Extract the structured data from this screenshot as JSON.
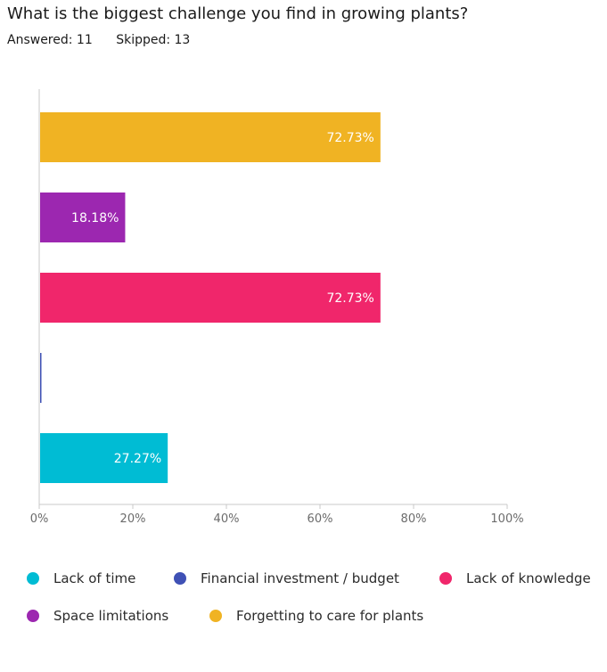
{
  "question": "What is the biggest challenge you find in growing plants?",
  "stats": {
    "answered": "Answered: 11",
    "skipped": "Skipped: 13"
  },
  "chart_data": {
    "type": "bar",
    "orientation": "horizontal",
    "categories": [
      "Forgetting to care for plants",
      "Space limitations",
      "Lack of knowledge",
      "Financial investment / budget",
      "Lack of time"
    ],
    "values": [
      72.73,
      18.18,
      72.73,
      0,
      27.27
    ],
    "data_labels": [
      "72.73%",
      "18.18%",
      "72.73%",
      "",
      "27.27%"
    ],
    "colors": [
      "#f0b323",
      "#9c27b0",
      "#f0266b",
      "#3f51b5",
      "#00bcd4"
    ],
    "xlim": [
      0,
      100
    ],
    "xticks": [
      "0%",
      "20%",
      "40%",
      "60%",
      "80%",
      "100%"
    ],
    "grid": false
  },
  "legend": [
    {
      "label": "Lack of time",
      "color": "#00bcd4"
    },
    {
      "label": "Financial investment / budget",
      "color": "#3f51b5"
    },
    {
      "label": "Lack of knowledge",
      "color": "#f0266b"
    },
    {
      "label": "Space limitations",
      "color": "#9c27b0"
    },
    {
      "label": "Forgetting to care for plants",
      "color": "#f0b323"
    }
  ]
}
